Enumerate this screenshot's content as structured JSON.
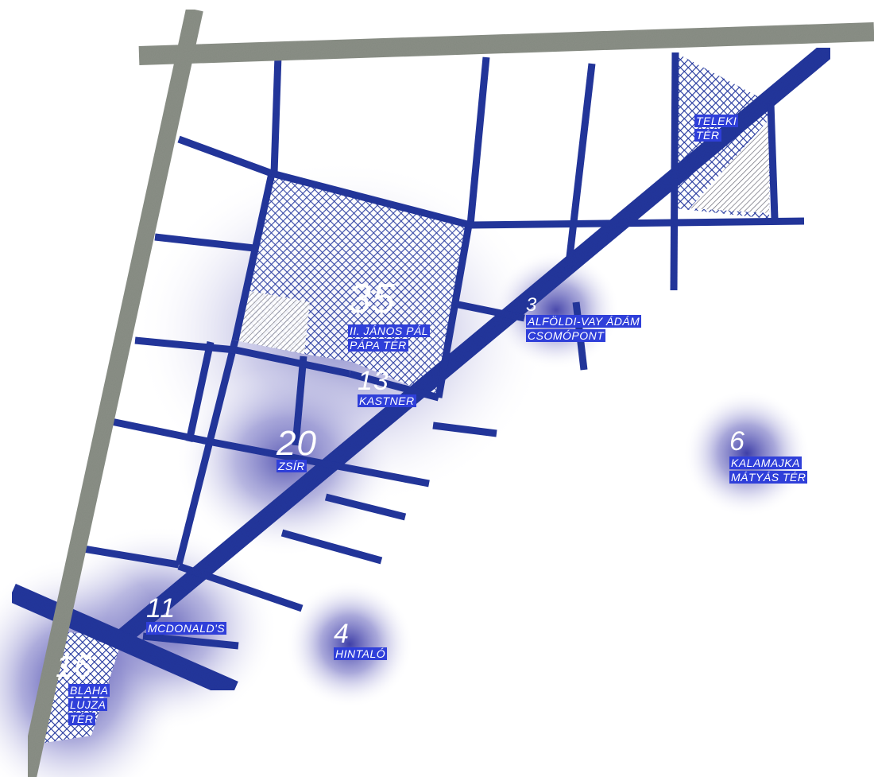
{
  "colors": {
    "boulevard_grey": "#8a8f86",
    "street_blue": "#21359c",
    "glow": "#2a2a9e",
    "label_bg": "#2f3fd9",
    "text": "#ffffff"
  },
  "places": [
    {
      "count": "35",
      "name": "II. JÁNOS PÁL\nPÁPA TÉR"
    },
    {
      "count": "13",
      "name": "KASTNER"
    },
    {
      "count": "3",
      "name": "ALFÖLDI-VAY ÁDÁM\nCSOMÓPONT"
    },
    {
      "count": "20",
      "name": "ZSÍR"
    },
    {
      "count": "6",
      "name": "KALAMAJKA\nMÁTYÁS TÉR"
    },
    {
      "count": "11",
      "name": "MCDONALD'S"
    },
    {
      "count": "4",
      "name": "HINTALÓ"
    },
    {
      "count": "16",
      "name": "BLAHA\nLUJZA\nTÉR"
    },
    {
      "count": "",
      "name": "TELEKI\nTÉR"
    }
  ]
}
